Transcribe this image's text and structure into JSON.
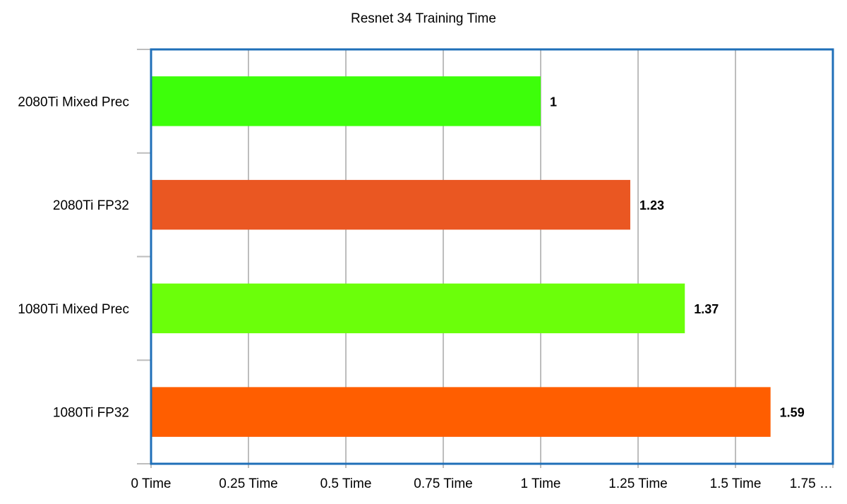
{
  "chart_data": {
    "type": "bar",
    "orientation": "horizontal",
    "title": "Resnet 34 Training Time",
    "xlabel": "",
    "ylabel": "",
    "categories": [
      "2080Ti Mixed Prec",
      "2080Ti FP32",
      "1080Ti Mixed Prec",
      "1080Ti FP32"
    ],
    "values": [
      1,
      1.23,
      1.37,
      1.59
    ],
    "data_labels": [
      "1",
      "1.23",
      "1.37",
      "1.59"
    ],
    "bar_colors": [
      "#3dff0a",
      "#ea5722",
      "#6bff0a",
      "#ff5e00"
    ],
    "x_ticks": [
      0,
      0.25,
      0.5,
      0.75,
      1,
      1.25,
      1.5,
      1.75
    ],
    "x_tick_labels": [
      "0 Time",
      "0.25 Time",
      "0.5 Time",
      "0.75 Time",
      "1 Time",
      "1.25 Time",
      "1.5 Time",
      "1.75 …"
    ],
    "xlim": [
      0,
      1.75
    ],
    "grid": true,
    "legend": "none",
    "frame_color": "#1f6fb8",
    "grid_color": "#bdbdbd"
  }
}
